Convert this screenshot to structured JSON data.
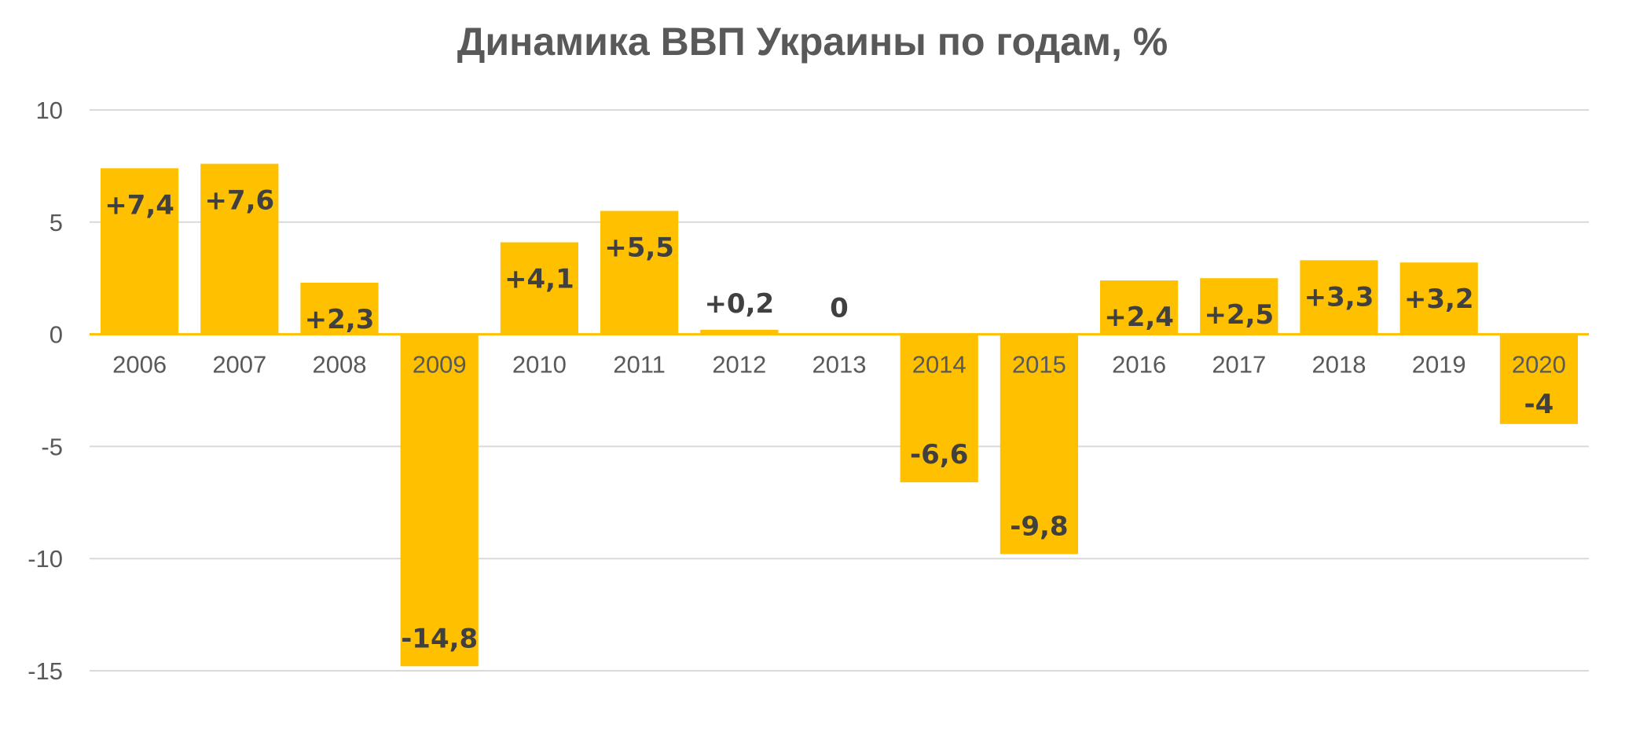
{
  "chart_data": {
    "type": "bar",
    "title": "Динамика ВВП Украины по годам, %",
    "categories": [
      "2006",
      "2007",
      "2008",
      "2009",
      "2010",
      "2011",
      "2012",
      "2013",
      "2014",
      "2015",
      "2016",
      "2017",
      "2018",
      "2019",
      "2020"
    ],
    "values": [
      7.4,
      7.6,
      2.3,
      -14.8,
      4.1,
      5.5,
      0.2,
      0,
      -6.6,
      -9.8,
      2.4,
      2.5,
      3.3,
      3.2,
      -4
    ],
    "data_labels": [
      "+7,4",
      "+7,6",
      "+2,3",
      "-14,8",
      "+4,1",
      "+5,5",
      "+0,2",
      "0",
      "-6,6",
      "-9,8",
      "+2,4",
      "+2,5",
      "+3,3",
      "+3,2",
      "-4"
    ],
    "yticks": [
      10,
      5,
      0,
      -5,
      -10,
      -15
    ],
    "ytick_labels": [
      "10",
      "5",
      "0",
      "-5",
      "-10",
      "-15"
    ],
    "ylim": [
      -15,
      10
    ],
    "xlabel": "",
    "ylabel": "",
    "grid": true,
    "legend": "none",
    "bar_color": "#FFC000"
  }
}
